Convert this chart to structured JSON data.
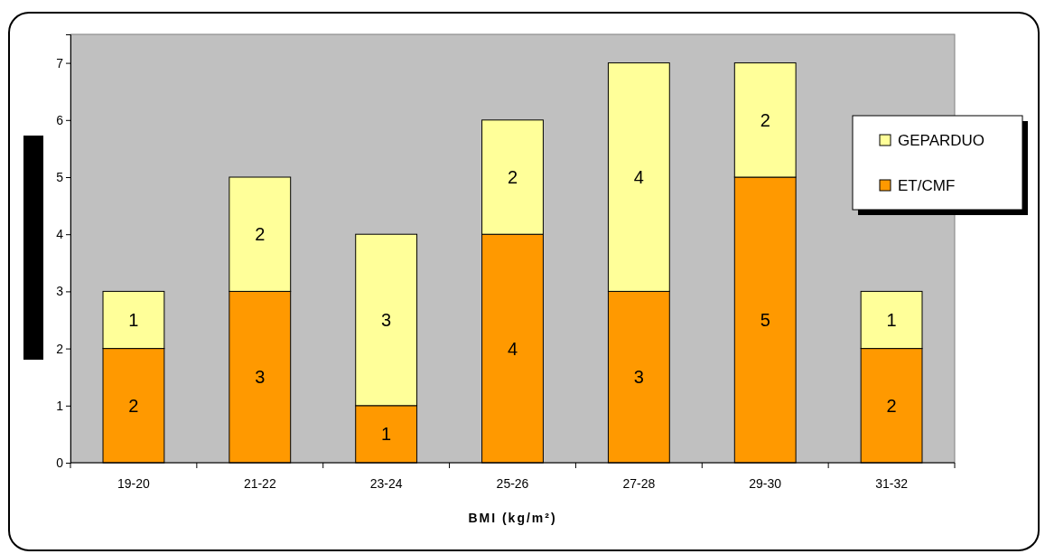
{
  "chart_data": {
    "type": "bar",
    "stacked": true,
    "xlabel": "BMI (kg/m²)",
    "categories": [
      "19-20",
      "21-22",
      "23-24",
      "25-26",
      "27-28",
      "29-30",
      "31-32"
    ],
    "series": [
      {
        "name": "ET/CMF",
        "color": "#ff9900",
        "values": [
          2,
          3,
          1,
          4,
          3,
          5,
          2
        ]
      },
      {
        "name": "GEPARDUO",
        "color": "#ffff99",
        "values": [
          1,
          2,
          3,
          2,
          4,
          2,
          1
        ]
      }
    ],
    "ylim": [
      0,
      7.5
    ],
    "yticks": [
      0,
      1,
      2,
      3,
      4,
      5,
      6,
      7
    ],
    "data_labels": true,
    "legend": "right",
    "grid": false
  }
}
